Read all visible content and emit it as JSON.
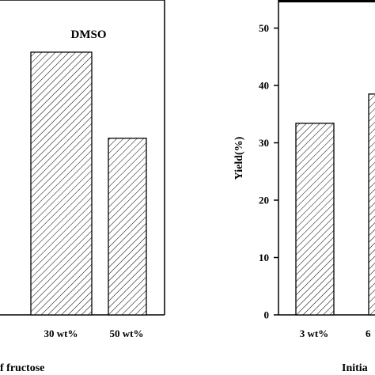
{
  "chart_data": [
    {
      "type": "bar",
      "panel_label": "DMSO",
      "categories": [
        "",
        "30 wt%",
        "50 wt%"
      ],
      "values": [
        0,
        45.8,
        30.8
      ],
      "xlabel": "f fructose",
      "ylabel": "",
      "ylim": [
        0,
        55
      ],
      "grid": false,
      "fill_pattern": "diagonal-hatch",
      "colors": {
        "bar_stroke": "#000000",
        "hatch": "#000000"
      }
    },
    {
      "type": "bar",
      "categories": [
        "3 wt%",
        "6"
      ],
      "values": [
        33.4,
        38.5
      ],
      "xlabel": "Initia",
      "ylabel": "Yield(%)",
      "ylim": [
        0,
        55
      ],
      "yticks": [
        0,
        10,
        20,
        30,
        40,
        50
      ],
      "grid": false,
      "fill_pattern": "diagonal-hatch",
      "colors": {
        "bar_stroke": "#000000",
        "hatch": "#000000"
      }
    }
  ]
}
